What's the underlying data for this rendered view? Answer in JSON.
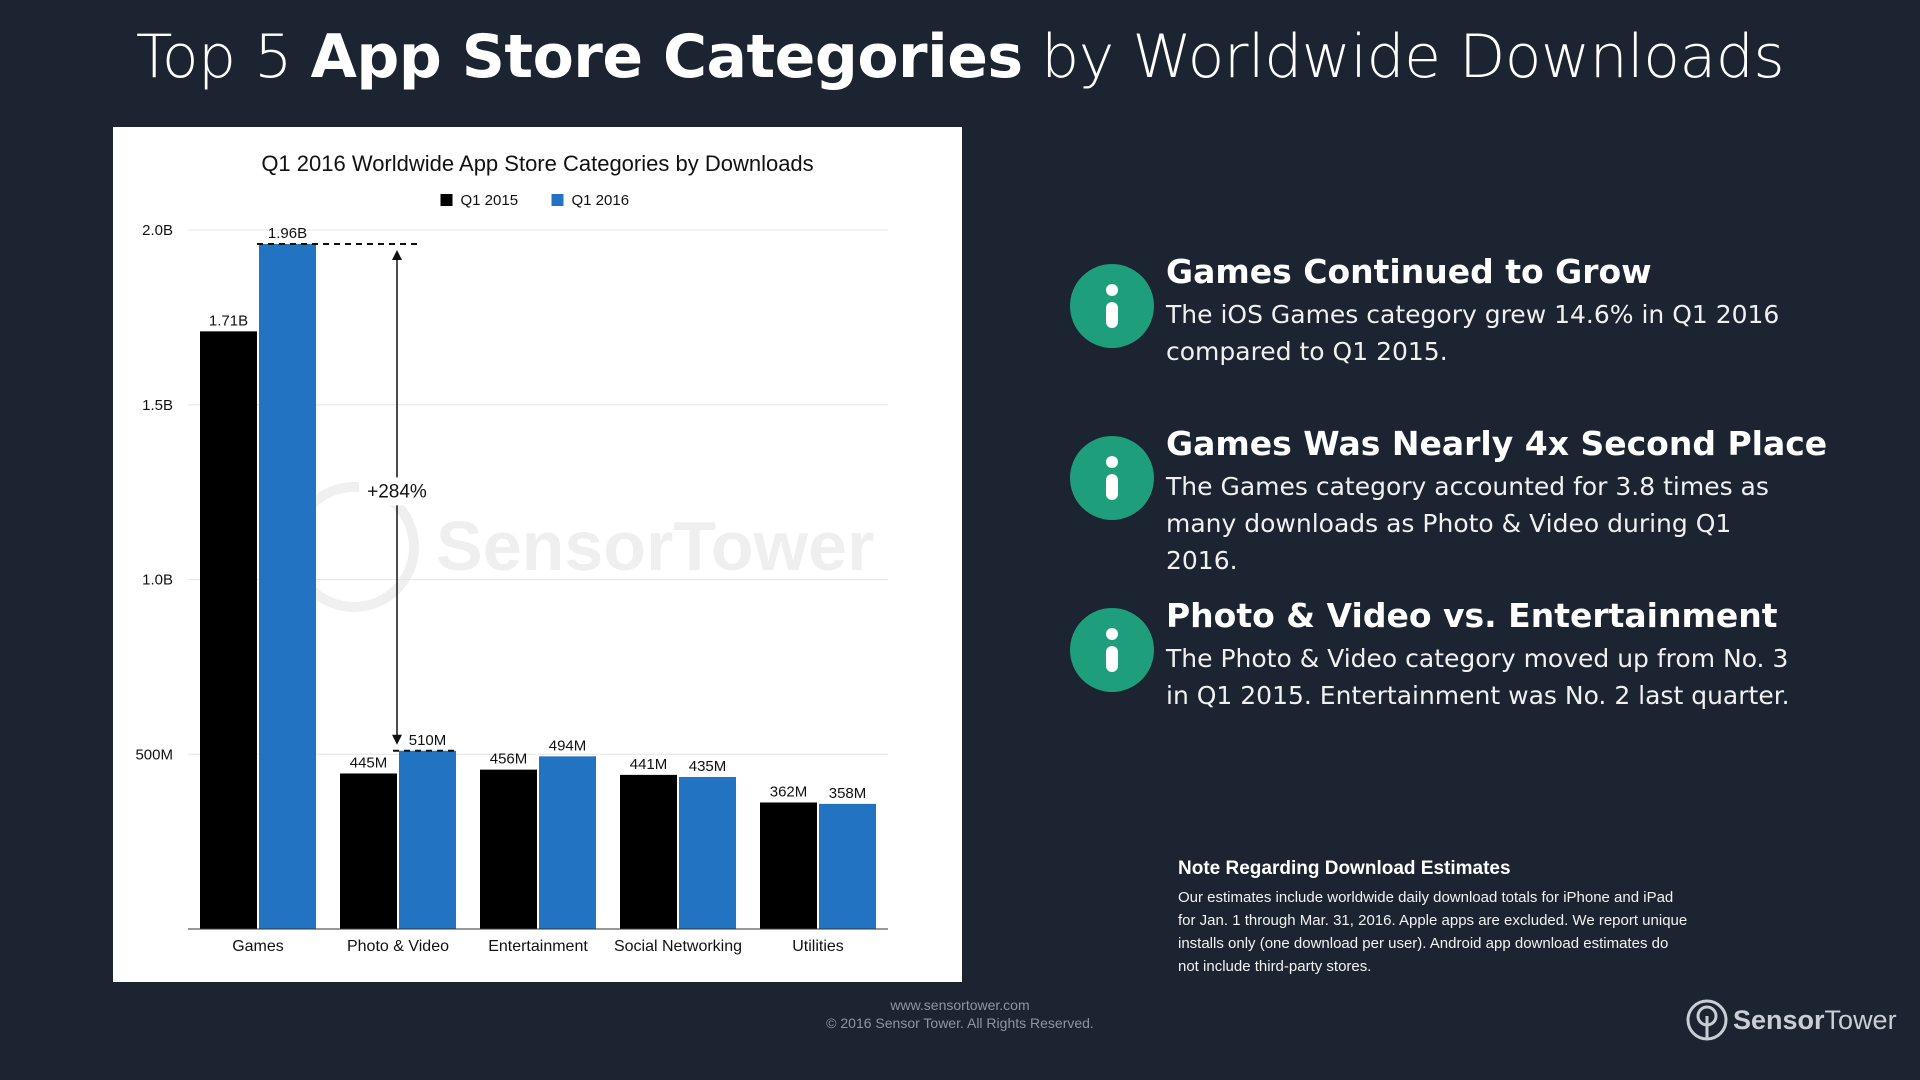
{
  "header": {
    "title_pre": "Top 5 ",
    "title_bold": "App Store Categories",
    "title_post": " by Worldwide Downloads"
  },
  "chart_data": {
    "type": "bar",
    "title": "Q1 2016 Worldwide App Store Categories by Downloads",
    "categories": [
      "Games",
      "Photo & Video",
      "Entertainment",
      "Social Networking",
      "Utilities"
    ],
    "series": [
      {
        "name": "Q1 2015",
        "color": "#000000",
        "values": [
          1710,
          445,
          456,
          441,
          362
        ],
        "labels": [
          "1.71B",
          "445M",
          "456M",
          "441M",
          "362M"
        ]
      },
      {
        "name": "Q1 2016",
        "color": "#2274c2",
        "values": [
          1960,
          510,
          494,
          435,
          358
        ],
        "labels": [
          "1.96B",
          "510M",
          "494M",
          "435M",
          "358M"
        ]
      }
    ],
    "unit": "millions of downloads",
    "yticks": [
      {
        "value": 500,
        "label": "500M"
      },
      {
        "value": 1000,
        "label": "1.0B"
      },
      {
        "value": 1500,
        "label": "1.5B"
      },
      {
        "value": 2000,
        "label": "2.0B"
      }
    ],
    "ylim": [
      0,
      2000
    ],
    "xlabel": "",
    "ylabel": "",
    "grid": true,
    "legend": "top-center",
    "annotation": {
      "label": "+284%",
      "from_category": "Photo & Video",
      "to_category": "Games",
      "from_value": 510,
      "to_value": 1960
    },
    "watermark": "SensorTower"
  },
  "insights": [
    {
      "icon": "info-icon",
      "title": "Games Continued to Grow",
      "text": "The iOS Games category grew 14.6% in Q1 2016 compared to Q1 2015."
    },
    {
      "icon": "info-icon",
      "title": "Games Was Nearly 4x Second Place",
      "text": "The Games category accounted for 3.8 times as many downloads as Photo & Video during Q1 2016."
    },
    {
      "icon": "info-icon",
      "title": "Photo & Video vs. Entertainment",
      "text": "The Photo & Video category moved up from No. 3 in Q1 2015. Entertainment was No. 2 last quarter."
    }
  ],
  "note": {
    "title": "Note Regarding Download Estimates",
    "text": "Our estimates include worldwide daily download totals for iPhone and iPad for Jan. 1 through Mar. 31, 2016. Apple apps are excluded. We report unique installs only (one download per user). Android app download estimates do not include third-party stores."
  },
  "footer": {
    "url": "www.sensortower.com",
    "copyright": "© 2016 Sensor Tower. All Rights Reserved."
  },
  "brand": {
    "name_bold": "Sensor",
    "name_rest": "Tower"
  },
  "colors": {
    "background": "#1b2430",
    "accent": "#1f9e7c",
    "q1_2016": "#2274c2",
    "q1_2015": "#000000"
  }
}
